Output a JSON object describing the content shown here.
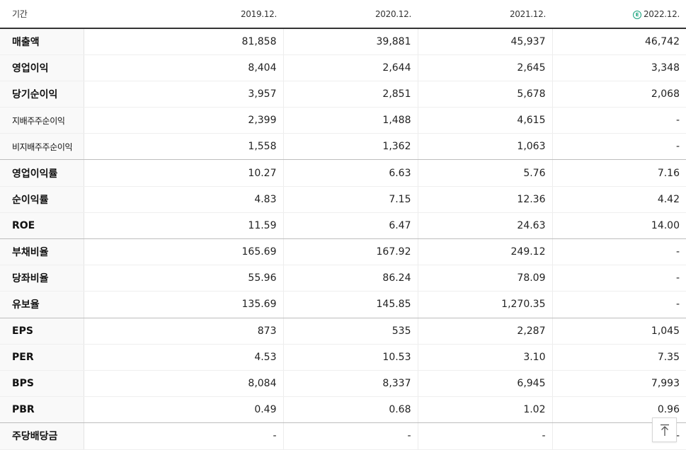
{
  "header": {
    "period_label": "기간",
    "years": [
      "2019.12.",
      "2020.12.",
      "2021.12.",
      "2022.12."
    ],
    "estimate_mark": "E"
  },
  "rows": [
    {
      "label": "매출액",
      "values": [
        "81,858",
        "39,881",
        "45,937",
        "46,742"
      ]
    },
    {
      "label": "영업이익",
      "values": [
        "8,404",
        "2,644",
        "2,645",
        "3,348"
      ]
    },
    {
      "label": "당기순이익",
      "values": [
        "3,957",
        "2,851",
        "5,678",
        "2,068"
      ]
    },
    {
      "label": "지배주주순이익",
      "values": [
        "2,399",
        "1,488",
        "4,615",
        "-"
      ]
    },
    {
      "label": "비지배주주순이익",
      "values": [
        "1,558",
        "1,362",
        "1,063",
        "-"
      ]
    },
    {
      "label": "영업이익률",
      "values": [
        "10.27",
        "6.63",
        "5.76",
        "7.16"
      ]
    },
    {
      "label": "순이익률",
      "values": [
        "4.83",
        "7.15",
        "12.36",
        "4.42"
      ]
    },
    {
      "label": "ROE",
      "values": [
        "11.59",
        "6.47",
        "24.63",
        "14.00"
      ]
    },
    {
      "label": "부채비율",
      "values": [
        "165.69",
        "167.92",
        "249.12",
        "-"
      ]
    },
    {
      "label": "당좌비율",
      "values": [
        "55.96",
        "86.24",
        "78.09",
        "-"
      ]
    },
    {
      "label": "유보율",
      "values": [
        "135.69",
        "145.85",
        "1,270.35",
        "-"
      ]
    },
    {
      "label": "EPS",
      "values": [
        "873",
        "535",
        "2,287",
        "1,045"
      ]
    },
    {
      "label": "PER",
      "values": [
        "4.53",
        "10.53",
        "3.10",
        "7.35"
      ]
    },
    {
      "label": "BPS",
      "values": [
        "8,084",
        "8,337",
        "6,945",
        "7,993"
      ]
    },
    {
      "label": "PBR",
      "values": [
        "0.49",
        "0.68",
        "1.02",
        "0.96"
      ]
    },
    {
      "label": "주당배당금",
      "values": [
        "-",
        "-",
        "-",
        "-"
      ]
    }
  ],
  "icons": {
    "top_button": "arrow-up-to-line-icon"
  }
}
